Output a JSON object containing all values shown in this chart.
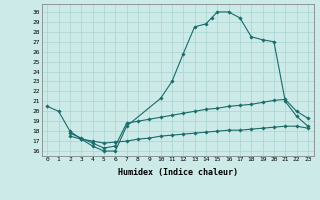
{
  "xlabel": "Humidex (Indice chaleur)",
  "background_color": "#cceae8",
  "line_color": "#1a6b6b",
  "grid_color": "#aad4d2",
  "line1_x": [
    0,
    1,
    2,
    3,
    4,
    5,
    6,
    7,
    10,
    11,
    12,
    13,
    14,
    14.5,
    15,
    16,
    17,
    18,
    19,
    20,
    21,
    22,
    23
  ],
  "line1_y": [
    20.5,
    20.0,
    18.0,
    17.2,
    16.5,
    16.0,
    16.0,
    18.5,
    21.3,
    23.0,
    25.8,
    28.5,
    28.8,
    29.4,
    30.0,
    30.0,
    29.4,
    27.5,
    27.2,
    27.0,
    21.0,
    19.5,
    18.5
  ],
  "line2_x": [
    2,
    3,
    4,
    5,
    6,
    7,
    8,
    9,
    10,
    11,
    12,
    13,
    14,
    15,
    16,
    17,
    18,
    19,
    20,
    21,
    22,
    23
  ],
  "line2_y": [
    17.8,
    17.3,
    16.8,
    16.3,
    16.5,
    18.8,
    19.0,
    19.2,
    19.4,
    19.6,
    19.8,
    20.0,
    20.2,
    20.3,
    20.5,
    20.6,
    20.7,
    20.9,
    21.1,
    21.2,
    20.0,
    19.3
  ],
  "line3_x": [
    2,
    3,
    4,
    5,
    6,
    7,
    8,
    9,
    10,
    11,
    12,
    13,
    14,
    15,
    16,
    17,
    18,
    19,
    20,
    21,
    22,
    23
  ],
  "line3_y": [
    17.5,
    17.2,
    17.0,
    16.8,
    16.9,
    17.0,
    17.2,
    17.3,
    17.5,
    17.6,
    17.7,
    17.8,
    17.9,
    18.0,
    18.1,
    18.1,
    18.2,
    18.3,
    18.4,
    18.5,
    18.5,
    18.3
  ],
  "ylim": [
    15.5,
    30.8
  ],
  "xlim": [
    -0.5,
    23.5
  ],
  "yticks": [
    16,
    17,
    18,
    19,
    20,
    21,
    22,
    23,
    24,
    25,
    26,
    27,
    28,
    29,
    30
  ],
  "xticks": [
    0,
    1,
    2,
    3,
    4,
    5,
    6,
    7,
    8,
    9,
    10,
    11,
    12,
    13,
    14,
    15,
    16,
    17,
    18,
    19,
    20,
    21,
    22,
    23
  ]
}
